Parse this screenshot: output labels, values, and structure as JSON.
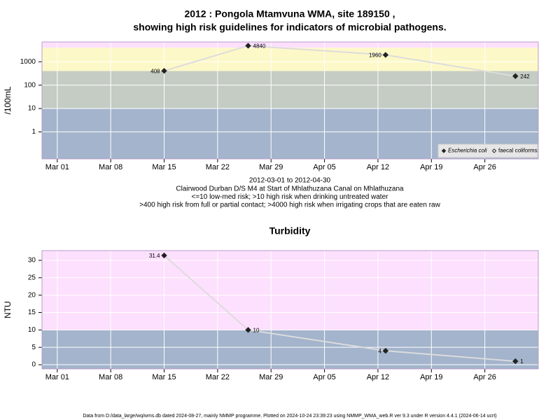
{
  "title": [
    "2012 : Pongola Mtamvuna WMA, site 189150 ,",
    "showing high risk guidelines for indicators of microbial pathogens."
  ],
  "footer": "Data from D:/data_large/wq/wms.db dated 2024-08-27, mainly NMMP programme. Plotted on 2024-10-24 23:39:23 using NMMP_WMA_web.R ver 9.3 under R version 4.4.1 (2024-06-14 ucrt)",
  "chart_data": [
    {
      "type": "line",
      "y_label": "/100mL",
      "log_y": true,
      "grid": true,
      "legend_corner": "bottom right",
      "notes": [
        "2012-03-01 to 2012-04-30",
        "Clairwood Durban D/S M4 at Start of Mhlathuzana Canal on Mhlathuzana",
        "<=10 low-med risk; >10 high risk when drinking untreated water",
        ">400 high risk from full or partial contact; >4000 high risk when irrigating crops that are eaten raw"
      ],
      "bands": {
        "breaks": [
          10,
          400,
          4000
        ],
        "colors": [
          "#a3b4cc",
          "#c4ccc4",
          "#fdf8c8",
          "#fde0fd"
        ]
      },
      "x": [
        "2012-03-15",
        "2012-03-26",
        "2012-04-13",
        "2012-04-30"
      ],
      "series": [
        {
          "name": "Escherichia coli",
          "color": "#222222",
          "marker": "filled",
          "values": [
            408,
            4840,
            1960,
            242
          ]
        },
        {
          "name": "faecal coliforms",
          "color": "#222222",
          "marker": "open",
          "values": [
            null,
            null,
            null,
            null
          ]
        }
      ],
      "xlim": [
        "2012-02-28",
        "2012-05-03"
      ],
      "xticks": [
        {
          "value": "2012-03-01",
          "label": "Mar 01"
        },
        {
          "value": "2012-03-08",
          "label": "Mar 08"
        },
        {
          "value": "2012-03-15",
          "label": "Mar 15"
        },
        {
          "value": "2012-03-22",
          "label": "Mar 22"
        },
        {
          "value": "2012-03-29",
          "label": "Mar 29"
        },
        {
          "value": "2012-04-05",
          "label": "Apr 05"
        },
        {
          "value": "2012-04-12",
          "label": "Apr 12"
        },
        {
          "value": "2012-04-19",
          "label": "Apr 19"
        },
        {
          "value": "2012-04-26",
          "label": "Apr 26"
        }
      ],
      "ylim": [
        0.07,
        7000
      ],
      "yticks": [
        1,
        10,
        100,
        1000
      ]
    },
    {
      "type": "line",
      "title": "Turbidity",
      "y_label": "NTU",
      "log_y": false,
      "grid": true,
      "bands": {
        "breaks": [
          10
        ],
        "colors": [
          "#a3b4cc",
          "#fde0fd"
        ]
      },
      "x": [
        "2012-03-15",
        "2012-03-26",
        "2012-04-13",
        "2012-04-30"
      ],
      "series": [
        {
          "name": "Turbidity",
          "color": "#222222",
          "marker": "filled",
          "values": [
            31.4,
            10,
            4,
            1
          ]
        }
      ],
      "xlim": [
        "2012-02-28",
        "2012-05-03"
      ],
      "xticks": [
        {
          "value": "2012-03-01",
          "label": "Mar 01"
        },
        {
          "value": "2012-03-08",
          "label": "Mar 08"
        },
        {
          "value": "2012-03-15",
          "label": "Mar 15"
        },
        {
          "value": "2012-03-22",
          "label": "Mar 22"
        },
        {
          "value": "2012-03-29",
          "label": "Mar 29"
        },
        {
          "value": "2012-04-05",
          "label": "Apr 05"
        },
        {
          "value": "2012-04-12",
          "label": "Apr 12"
        },
        {
          "value": "2012-04-19",
          "label": "Apr 19"
        },
        {
          "value": "2012-04-26",
          "label": "Apr 26"
        }
      ],
      "ylim": [
        -1.2,
        32.8
      ],
      "yticks": [
        0,
        5,
        10,
        15,
        20,
        25,
        30
      ]
    }
  ]
}
